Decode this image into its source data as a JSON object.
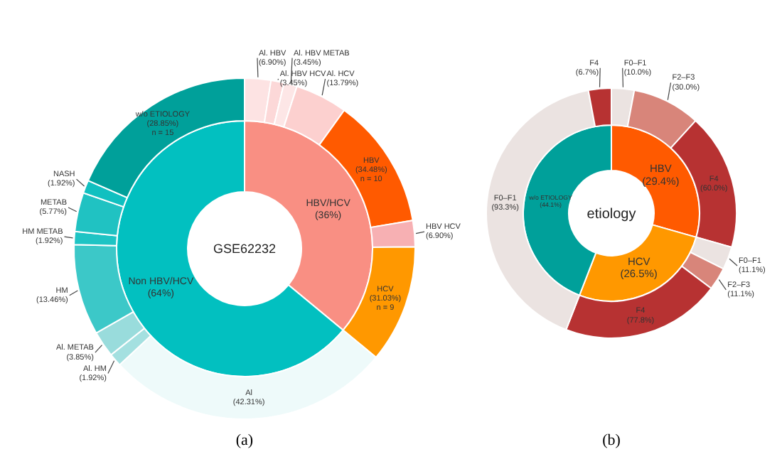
{
  "chart_data": [
    {
      "type": "donut",
      "title": "GSE62232",
      "categories": [
        "HBV/HCV",
        "Non HBV/HCV"
      ],
      "values": [
        36,
        64
      ],
      "colors": [
        "#f98f83",
        "#02c0c0"
      ],
      "value_labels": [
        "(36%)",
        "(64%)"
      ],
      "annotations": [
        "(a)"
      ]
    },
    {
      "type": "other",
      "categories": [
        "Al. HBV",
        "Al. HBV HCV",
        "Al. HBV METAB",
        "Al. HCV",
        "HBV",
        "HBV HCV",
        "HCV",
        "Al",
        "Al. HM",
        "Al. METAB",
        "HM",
        "HM METAB",
        "METAB",
        "NASH",
        "w/o ETIOLOGY"
      ],
      "values": [
        6.9,
        3.45,
        3.45,
        13.79,
        34.48,
        6.9,
        31.03,
        42.31,
        1.92,
        3.85,
        13.46,
        1.92,
        5.77,
        1.92,
        28.85
      ],
      "colors": [
        "#fde3e3",
        "#fcd8d8",
        "#fde6e6",
        "#fcd0cf",
        "#ff5a00",
        "#f7b0b3",
        "#ff9800",
        "#eefafa",
        "#a4e0e0",
        "#99dcdc",
        "#3cc8c8",
        "#1ec4c4",
        "#20c2c2",
        "#10c0c0",
        "#00a09a"
      ],
      "value_labels": [
        "(6.90%)",
        "(3.45%)",
        "(3.45%)",
        "(13.79%)",
        "(34.48%)\nn = 10",
        "(6.90%)",
        "(31.03%)\nn = 9",
        "(42.31%)",
        "(1.92%)",
        "(3.85%)",
        "(13.46%)",
        "(1.92%)",
        "(5.77%)",
        "(1.92%)",
        "(28.85%)\nn = 15"
      ]
    },
    {
      "type": "donut",
      "title": "etiology",
      "categories": [
        "HBV",
        "HCV",
        "w/o ETIOLOGY"
      ],
      "values": [
        29.4,
        26.5,
        44.1
      ],
      "colors": [
        "#ff5a00",
        "#ff9800",
        "#00a09a"
      ],
      "value_labels": [
        "(29.4%)",
        "(26.5%)",
        "(44.1%)"
      ],
      "annotations": [
        "(b)"
      ]
    },
    {
      "type": "other",
      "categories": [
        "F0–F1",
        "F2–F3",
        "F4",
        "F0–F1",
        "F2–F3",
        "F4",
        "F0–F1",
        "F4"
      ],
      "values": [
        10.0,
        30.0,
        60.0,
        11.1,
        11.1,
        77.8,
        93.3,
        6.7
      ],
      "colors": [
        "#ebe3e1",
        "#d8857a",
        "#b73232",
        "#ebe3e1",
        "#d8857a",
        "#b73232",
        "#ebe3e1",
        "#b73232"
      ],
      "value_labels": [
        "(10.0%)",
        "(30.0%)",
        "(60.0%)",
        "(11.1%)",
        "(11.1%)",
        "(77.8%)",
        "(93.3%)",
        "(6.7%)"
      ]
    }
  ]
}
